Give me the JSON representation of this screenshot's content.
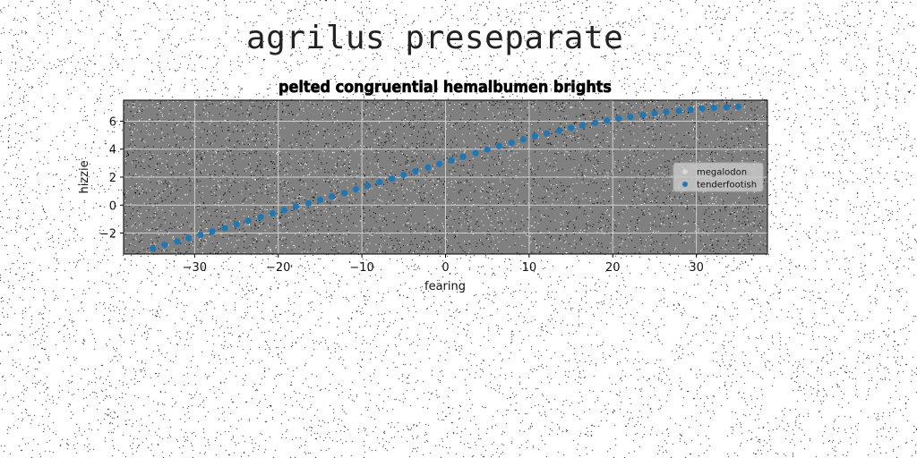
{
  "page": {
    "heading": "agrilus preseparate"
  },
  "chart_data": {
    "type": "scatter",
    "title": "pelted congruential hemalbumen brights",
    "xlabel": "fearing",
    "ylabel": "hizzie",
    "xlim": [
      -38.5,
      38.5
    ],
    "ylim": [
      -3.5,
      7.5
    ],
    "xticks": [
      -30,
      -20,
      -10,
      0,
      10,
      20,
      30
    ],
    "yticks": [
      -2,
      0,
      2,
      4,
      6
    ],
    "grid": true,
    "legend_position": "center-right",
    "series": [
      {
        "name": "megalodon",
        "color": "#d8d8d8",
        "x": [],
        "y": []
      },
      {
        "name": "tenderfootish",
        "color": "#1f77b4",
        "x": [
          -35.0,
          -33.6,
          -32.1,
          -30.7,
          -29.3,
          -27.9,
          -26.4,
          -25.0,
          -23.6,
          -22.1,
          -20.7,
          -19.3,
          -17.9,
          -16.4,
          -15.0,
          -13.6,
          -12.1,
          -10.7,
          -9.3,
          -7.9,
          -6.4,
          -5.0,
          -3.6,
          -2.1,
          -0.7,
          0.7,
          2.1,
          3.6,
          5.0,
          6.4,
          7.9,
          9.3,
          10.7,
          12.1,
          13.6,
          15.0,
          16.4,
          17.9,
          19.3,
          20.7,
          22.1,
          23.6,
          25.0,
          26.4,
          27.9,
          29.3,
          30.7,
          32.1,
          33.6,
          35.0
        ],
        "y": [
          -3.1,
          -2.84,
          -2.6,
          -2.36,
          -2.12,
          -1.88,
          -1.64,
          -1.38,
          -1.12,
          -0.86,
          -0.6,
          -0.36,
          -0.1,
          0.14,
          0.38,
          0.62,
          0.86,
          1.12,
          1.38,
          1.64,
          1.9,
          2.16,
          2.42,
          2.68,
          2.94,
          3.2,
          3.46,
          3.72,
          3.98,
          4.22,
          4.46,
          4.7,
          4.92,
          5.12,
          5.32,
          5.52,
          5.7,
          5.88,
          6.04,
          6.18,
          6.32,
          6.44,
          6.56,
          6.66,
          6.74,
          6.82,
          6.9,
          6.96,
          7.0,
          7.04
        ]
      }
    ]
  }
}
